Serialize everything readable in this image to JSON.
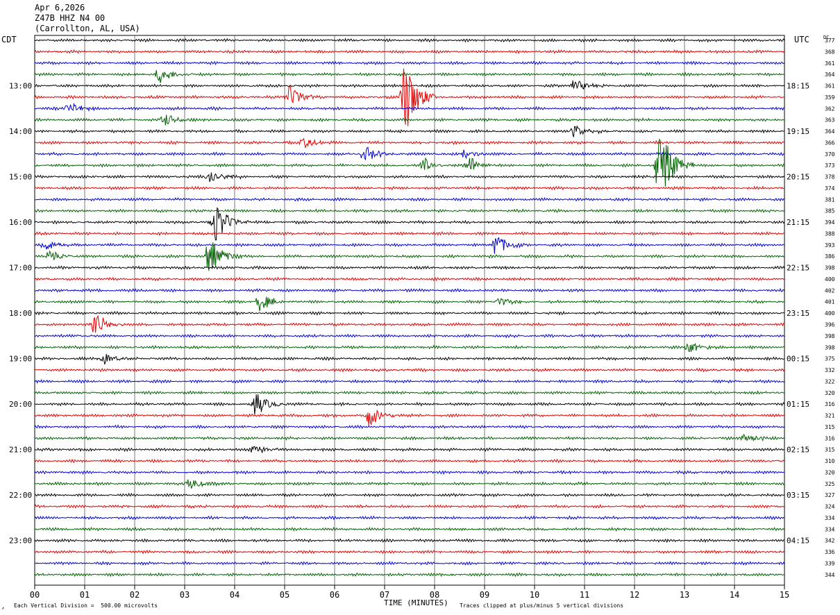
{
  "header": {
    "date": "Apr 6,2026",
    "station": "Z47B HHZ N4 00",
    "location": "(Carrollton, AL, USA)"
  },
  "chart_data": {
    "type": "line",
    "title": "",
    "left_axis_label": "CDT",
    "right_axis_label": "UTC",
    "dc_label": "DC",
    "xlabel": "TIME (MINUTES)",
    "x_ticks": [
      "00",
      "01",
      "02",
      "03",
      "04",
      "05",
      "06",
      "07",
      "08",
      "09",
      "10",
      "11",
      "12",
      "13",
      "14",
      "15"
    ],
    "xlim": [
      0,
      15
    ],
    "grid": true,
    "trace_colors": [
      "#000000",
      "#e00000",
      "#0000d0",
      "#006000"
    ],
    "left_time_labels": [
      {
        "trace": 4,
        "label": "13:00"
      },
      {
        "trace": 8,
        "label": "14:00"
      },
      {
        "trace": 12,
        "label": "15:00"
      },
      {
        "trace": 16,
        "label": "16:00"
      },
      {
        "trace": 20,
        "label": "17:00"
      },
      {
        "trace": 24,
        "label": "18:00"
      },
      {
        "trace": 28,
        "label": "19:00"
      },
      {
        "trace": 32,
        "label": "20:00"
      },
      {
        "trace": 36,
        "label": "21:00"
      },
      {
        "trace": 40,
        "label": "22:00"
      },
      {
        "trace": 44,
        "label": "23:00"
      }
    ],
    "right_time_labels": [
      {
        "trace": 4,
        "label": "18:15"
      },
      {
        "trace": 8,
        "label": "19:15"
      },
      {
        "trace": 12,
        "label": "20:15"
      },
      {
        "trace": 16,
        "label": "21:15"
      },
      {
        "trace": 20,
        "label": "22:15"
      },
      {
        "trace": 24,
        "label": "23:15"
      },
      {
        "trace": 28,
        "label": "00:15"
      },
      {
        "trace": 32,
        "label": "01:15"
      },
      {
        "trace": 36,
        "label": "02:15"
      },
      {
        "trace": 40,
        "label": "03:15"
      },
      {
        "trace": 44,
        "label": "04:15"
      }
    ],
    "dc_values": [
      "377",
      "368",
      "361",
      "364",
      "361",
      "359",
      "362",
      "363",
      "364",
      "366",
      "370",
      "373",
      "378",
      "374",
      "381",
      "385",
      "394",
      "388",
      "393",
      "386",
      "398",
      "400",
      "402",
      "401",
      "400",
      "396",
      "398",
      "398",
      "375",
      "332",
      "322",
      "320",
      "316",
      "321",
      "315",
      "316",
      "315",
      "310",
      "320",
      "325",
      "327",
      "324",
      "334",
      "334",
      "342",
      "336",
      "339",
      "344"
    ],
    "events": [
      {
        "trace": 3,
        "minute": 2.5,
        "amp": 1.0
      },
      {
        "trace": 4,
        "minute": 10.8,
        "amp": 0.8
      },
      {
        "trace": 5,
        "minute": 7.4,
        "amp": 5.0
      },
      {
        "trace": 5,
        "minute": 5.1,
        "amp": 1.4
      },
      {
        "trace": 6,
        "minute": 0.7,
        "amp": 0.8
      },
      {
        "trace": 7,
        "minute": 2.6,
        "amp": 0.8
      },
      {
        "trace": 8,
        "minute": 10.8,
        "amp": 0.8
      },
      {
        "trace": 9,
        "minute": 5.4,
        "amp": 0.7
      },
      {
        "trace": 10,
        "minute": 6.6,
        "amp": 1.0
      },
      {
        "trace": 10,
        "minute": 8.6,
        "amp": 0.6
      },
      {
        "trace": 11,
        "minute": 12.5,
        "amp": 5.0
      },
      {
        "trace": 11,
        "minute": 7.8,
        "amp": 0.9
      },
      {
        "trace": 11,
        "minute": 8.7,
        "amp": 1.1
      },
      {
        "trace": 12,
        "minute": 3.5,
        "amp": 0.9
      },
      {
        "trace": 16,
        "minute": 3.6,
        "amp": 2.6
      },
      {
        "trace": 18,
        "minute": 9.2,
        "amp": 1.6
      },
      {
        "trace": 18,
        "minute": 0.2,
        "amp": 0.8
      },
      {
        "trace": 19,
        "minute": 3.5,
        "amp": 2.6
      },
      {
        "trace": 19,
        "minute": 0.3,
        "amp": 0.8
      },
      {
        "trace": 23,
        "minute": 4.5,
        "amp": 1.2
      },
      {
        "trace": 23,
        "minute": 9.3,
        "amp": 0.6
      },
      {
        "trace": 25,
        "minute": 1.2,
        "amp": 1.5
      },
      {
        "trace": 27,
        "minute": 13.1,
        "amp": 0.7
      },
      {
        "trace": 28,
        "minute": 1.4,
        "amp": 0.7
      },
      {
        "trace": 32,
        "minute": 4.4,
        "amp": 1.5
      },
      {
        "trace": 33,
        "minute": 6.7,
        "amp": 1.5
      },
      {
        "trace": 35,
        "minute": 14.2,
        "amp": 0.7
      },
      {
        "trace": 36,
        "minute": 4.4,
        "amp": 0.6
      },
      {
        "trace": 39,
        "minute": 3.1,
        "amp": 0.8
      }
    ]
  },
  "footer": {
    "scale_note": "Each Vertical Division =  500.00 microvolts",
    "clip_note": "Traces clipped at plus/minus 5 vertical divisions",
    "corner_mark": "↗"
  }
}
